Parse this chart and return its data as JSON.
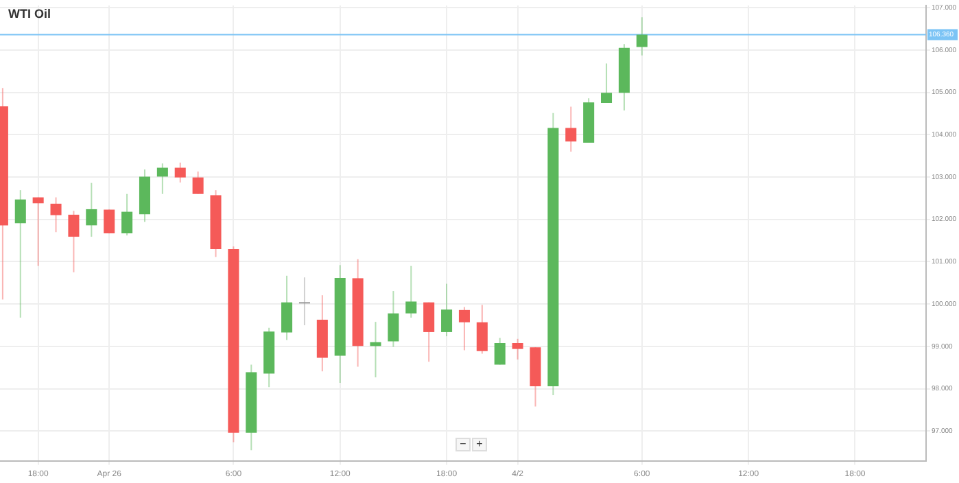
{
  "chart_data": {
    "type": "candlestick",
    "title": "WTI Oil",
    "categories": [
      null,
      null,
      "18:00",
      null,
      null,
      null,
      "Apr 26",
      null,
      null,
      null,
      null,
      null,
      null,
      "6:00",
      null,
      null,
      null,
      null,
      null,
      "12:00",
      null,
      null,
      null,
      null,
      null,
      "18:00",
      null,
      null,
      null,
      "4/2",
      null,
      null,
      null,
      null,
      null,
      null,
      "6:00",
      null,
      null,
      null,
      null,
      null,
      "12:00",
      null,
      null,
      null,
      null,
      null,
      "18:00",
      null,
      null,
      null
    ],
    "annotations": [
      "−",
      "+"
    ],
    "ohlc": [
      [
        104.67,
        105.1,
        100.11,
        101.86
      ],
      [
        101.91,
        102.69,
        99.68,
        102.47
      ],
      [
        102.52,
        102.52,
        100.9,
        102.38
      ],
      [
        102.37,
        102.52,
        101.7,
        102.1
      ],
      [
        102.11,
        102.2,
        100.75,
        101.59
      ],
      [
        101.86,
        102.86,
        101.59,
        102.24
      ],
      [
        102.23,
        102.23,
        101.67,
        101.67
      ],
      [
        101.67,
        102.6,
        101.62,
        102.18
      ],
      [
        102.12,
        103.18,
        101.94,
        103.01
      ],
      [
        103.01,
        103.32,
        102.6,
        103.22
      ],
      [
        103.22,
        103.34,
        102.87,
        102.99
      ],
      [
        102.99,
        103.13,
        102.6,
        102.6
      ],
      [
        102.57,
        102.69,
        101.11,
        101.3
      ],
      [
        101.3,
        101.36,
        96.74,
        96.96
      ],
      [
        96.96,
        98.57,
        96.55,
        98.39
      ],
      [
        98.36,
        99.44,
        98.04,
        99.35
      ],
      [
        99.33,
        100.67,
        99.15,
        100.04
      ],
      [
        100.03,
        100.63,
        99.5,
        100.03
      ],
      [
        99.63,
        100.21,
        98.41,
        98.73
      ],
      [
        98.78,
        100.92,
        98.14,
        100.62
      ],
      [
        100.61,
        101.06,
        98.52,
        99.01
      ],
      [
        99.01,
        99.58,
        98.27,
        99.1
      ],
      [
        99.12,
        100.31,
        98.99,
        99.78
      ],
      [
        99.78,
        100.9,
        99.68,
        100.06
      ],
      [
        100.04,
        100.04,
        98.64,
        99.34
      ],
      [
        99.34,
        100.48,
        99.24,
        99.87
      ],
      [
        99.86,
        99.93,
        98.91,
        99.57
      ],
      [
        99.57,
        99.98,
        98.83,
        98.89
      ],
      [
        98.57,
        99.2,
        98.57,
        99.08
      ],
      [
        99.08,
        99.18,
        98.69,
        98.94
      ],
      [
        98.98,
        98.98,
        97.58,
        98.06
      ],
      [
        98.06,
        104.51,
        97.85,
        104.16
      ],
      [
        104.16,
        104.66,
        103.6,
        103.84
      ],
      [
        103.81,
        104.86,
        103.81,
        104.76
      ],
      [
        104.75,
        105.68,
        104.75,
        104.99
      ],
      [
        104.99,
        106.14,
        104.57,
        106.05
      ],
      [
        106.07,
        106.77,
        105.87,
        106.36
      ],
      null,
      null,
      null,
      null,
      null,
      null,
      null,
      null,
      null,
      null,
      null,
      null,
      null,
      null,
      null
    ],
    "colors": [
      "#f55a58",
      "#5cb85c",
      "#f55a58",
      "#f55a58",
      "#f55a58",
      "#5cb85c",
      "#f55a58",
      "#5cb85c",
      "#5cb85c",
      "#5cb85c",
      "#f55a58",
      "#f55a58",
      "#f55a58",
      "#f55a58",
      "#5cb85c",
      "#5cb85c",
      "#5cb85c",
      "#999999",
      "#f55a58",
      "#5cb85c",
      "#f55a58",
      "#5cb85c",
      "#5cb85c",
      "#5cb85c",
      "#f55a58",
      "#5cb85c",
      "#f55a58",
      "#f55a58",
      "#5cb85c",
      "#f55a58",
      "#f55a58",
      "#5cb85c",
      "#f55a58",
      "#5cb85c",
      "#5cb85c",
      "#5cb85c",
      "#5cb85c",
      null,
      null,
      null,
      null,
      null,
      null,
      null,
      null,
      null,
      null,
      null,
      null,
      null,
      null,
      null
    ],
    "ylim": [
      96.3,
      107.05
    ],
    "yticks": [
      {
        "value": 97,
        "label": "97.000"
      },
      {
        "value": 98,
        "label": "98.000"
      },
      {
        "value": 99,
        "label": "99.000"
      },
      {
        "value": 100,
        "label": "100.000"
      },
      {
        "value": 101,
        "label": "101.000"
      },
      {
        "value": 102,
        "label": "102.000"
      },
      {
        "value": 103,
        "label": "103.000"
      },
      {
        "value": 104,
        "label": "104.000"
      },
      {
        "value": 105,
        "label": "105.000"
      },
      {
        "value": 106,
        "label": "106.000"
      },
      {
        "value": 107,
        "label": "107.000"
      }
    ],
    "ref_lines": [
      {
        "axis": "y",
        "value": 106.36,
        "label": "106.360",
        "color": "#7cc4f5"
      }
    ],
    "grid": true,
    "legend": false
  }
}
